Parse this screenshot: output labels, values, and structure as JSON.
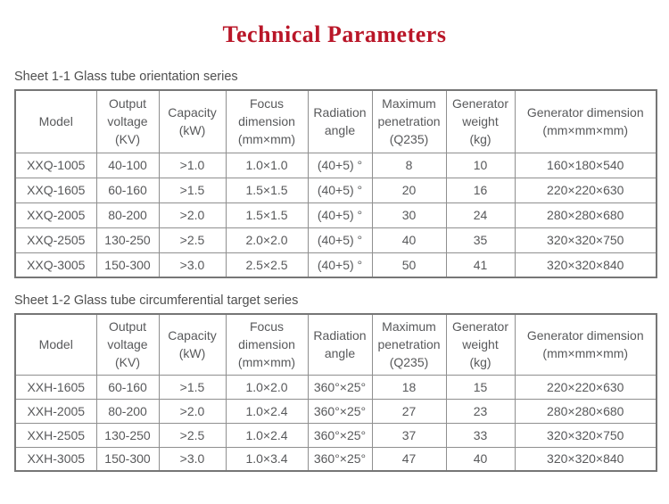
{
  "page": {
    "title": "Technical Parameters",
    "title_color": "#b91628",
    "text_color": "#58595b",
    "border_color": "#8f8f8f"
  },
  "tables": [
    {
      "caption": "Sheet 1-1 Glass tube orientation series",
      "headers": [
        "Model",
        "Output\nvoltage\n(KV)",
        "Capacity\n(kW)",
        "Focus\ndimension\n(mm×mm)",
        "Radiation\nangle",
        "Maximum\npenetration\n(Q235)",
        "Generator\nweight\n(kg)",
        "Generator dimension\n(mm×mm×mm)"
      ],
      "rows": [
        [
          "XXQ-1005",
          "40-100",
          ">1.0",
          "1.0×1.0",
          "(40+5) °",
          "8",
          "10",
          "160×180×540"
        ],
        [
          "XXQ-1605",
          "60-160",
          ">1.5",
          "1.5×1.5",
          "(40+5) °",
          "20",
          "16",
          "220×220×630"
        ],
        [
          "XXQ-2005",
          "80-200",
          ">2.0",
          "1.5×1.5",
          "(40+5) °",
          "30",
          "24",
          "280×280×680"
        ],
        [
          "XXQ-2505",
          "130-250",
          ">2.5",
          "2.0×2.0",
          "(40+5) °",
          "40",
          "35",
          "320×320×750"
        ],
        [
          "XXQ-3005",
          "150-300",
          ">3.0",
          "2.5×2.5",
          "(40+5) °",
          "50",
          "41",
          "320×320×840"
        ]
      ]
    },
    {
      "caption": "Sheet 1-2 Glass tube circumferential target series",
      "headers": [
        "Model",
        "Output\nvoltage\n(KV)",
        "Capacity\n(kW)",
        "Focus\ndimension\n(mm×mm)",
        "Radiation\nangle",
        "Maximum\npenetration\n(Q235)",
        "Generator\nweight\n(kg)",
        "Generator dimension\n(mm×mm×mm)"
      ],
      "rows": [
        [
          "XXH-1605",
          "60-160",
          ">1.5",
          "1.0×2.0",
          "360°×25°",
          "18",
          "15",
          "220×220×630"
        ],
        [
          "XXH-2005",
          "80-200",
          ">2.0",
          "1.0×2.4",
          "360°×25°",
          "27",
          "23",
          "280×280×680"
        ],
        [
          "XXH-2505",
          "130-250",
          ">2.5",
          "1.0×2.4",
          "360°×25°",
          "37",
          "33",
          "320×320×750"
        ],
        [
          "XXH-3005",
          "150-300",
          ">3.0",
          "1.0×3.4",
          "360°×25°",
          "47",
          "40",
          "320×320×840"
        ]
      ]
    }
  ]
}
